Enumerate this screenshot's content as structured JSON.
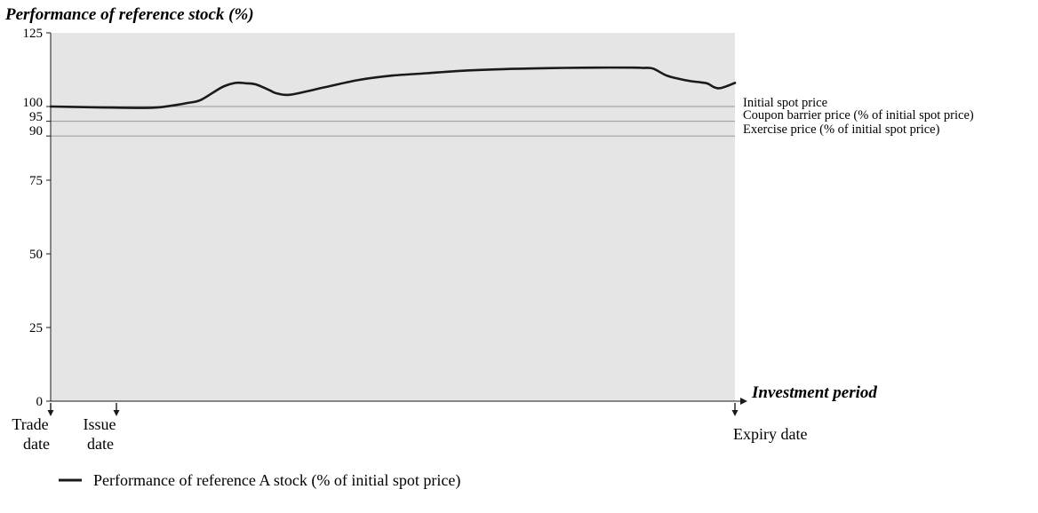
{
  "chart_data": {
    "type": "line",
    "title": "Performance of reference stock (%)",
    "xlabel": "Investment period",
    "ylim": [
      0,
      125
    ],
    "y_ticks": [
      0,
      25,
      50,
      75,
      90,
      95,
      100,
      125
    ],
    "grid": false,
    "legend_position": "bottom-left",
    "reference_lines": [
      {
        "value": 100,
        "label": "Initial spot price"
      },
      {
        "value": 95,
        "label": "Coupon barrier price (% of initial spot price)"
      },
      {
        "value": 90,
        "label": "Exercise price (% of initial spot price)"
      }
    ],
    "events": [
      {
        "label_lines": [
          "Trade",
          "date"
        ]
      },
      {
        "label_lines": [
          "Issue",
          "date"
        ]
      },
      {
        "label_lines": [
          "Expiry date"
        ]
      }
    ],
    "series": [
      {
        "name": "Performance of reference A stock (% of initial spot price)",
        "x": [
          0,
          5,
          10,
          15,
          18,
          20,
          22,
          25,
          27,
          28.5,
          30,
          32,
          33,
          35,
          40,
          45,
          50,
          55,
          60,
          65,
          70,
          75,
          80,
          85,
          86.5,
          88,
          90,
          92,
          93.5,
          95,
          96,
          97,
          98,
          100
        ],
        "y": [
          100,
          99.8,
          99.6,
          99.6,
          100.4,
          101.2,
          102.3,
          106.5,
          108,
          107.9,
          107.5,
          105.5,
          104.5,
          104,
          106.5,
          109,
          110.5,
          111.3,
          112.1,
          112.6,
          112.9,
          113.1,
          113.2,
          113.2,
          113.1,
          112.9,
          110.5,
          109.3,
          108.6,
          108.2,
          107.8,
          106.5,
          106.3,
          108
        ]
      }
    ]
  },
  "colors": {
    "plot_bg": "#e5e5e5",
    "series_line": "#1a1a1a",
    "reference_line": "#999999"
  }
}
